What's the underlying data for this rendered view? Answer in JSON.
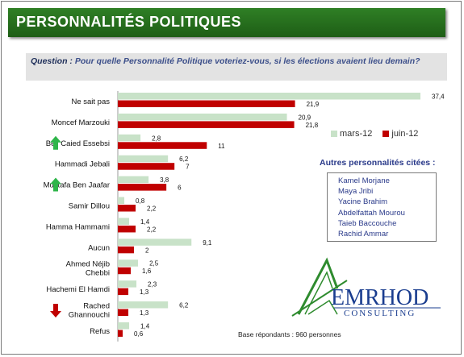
{
  "title": "PERSONNALITÉS  POLITIQUES",
  "question": {
    "label": "Question :",
    "text": "Pour quelle Personnalité Politique voteriez-vous, si les élections avaient lieu demain?"
  },
  "chart_data": {
    "type": "bar",
    "orientation": "horizontal",
    "categories": [
      "Ne sait pas",
      "Moncef Marzouki",
      "Beji Caied Essebsi",
      "Hammadi Jebali",
      "Mustafa Ben Jaafar",
      "Samir Dillou",
      "Hamma Hammami",
      "Aucun",
      "Ahmed Néjib Chebbi",
      "Hachemi El Hamdi",
      "Rached Ghannouchi",
      "Refus"
    ],
    "category_lines": [
      [
        "Ne sait pas"
      ],
      [
        "Moncef Marzouki"
      ],
      [
        "Beji Caied Essebsi"
      ],
      [
        "Hammadi Jebali"
      ],
      [
        "Mustafa Ben Jaafar"
      ],
      [
        "Samir Dillou"
      ],
      [
        "Hamma Hammami"
      ],
      [
        "Aucun"
      ],
      [
        "Ahmed Néjib",
        "Chebbi"
      ],
      [
        "Hachemi El Hamdi"
      ],
      [
        "Rached",
        "Ghannouchi"
      ],
      [
        "Refus"
      ]
    ],
    "series": [
      {
        "name": "mars-12",
        "color": "#c8e2c8",
        "values": [
          37.4,
          20.9,
          2.8,
          6.2,
          3.8,
          0.8,
          1.4,
          9.1,
          2.5,
          2.3,
          6.2,
          1.4
        ],
        "labels": [
          "37,4",
          "20,9",
          "2,8",
          "6,2",
          "3,8",
          "0,8",
          "1,4",
          "9,1",
          "2,5",
          "2,3",
          "6,2",
          "1,4"
        ]
      },
      {
        "name": "juin-12",
        "color": "#c00000",
        "values": [
          21.9,
          21.8,
          11,
          7,
          6,
          2.2,
          2.2,
          2,
          1.6,
          1.3,
          1.3,
          0.6
        ],
        "labels": [
          "21,9",
          "21,8",
          "11",
          "7",
          "6",
          "2,2",
          "2,2",
          "2",
          "1,6",
          "1,3",
          "1,3",
          "0,6"
        ]
      }
    ],
    "trend_arrows": [
      {
        "category": "Beji Caied Essebsi",
        "direction": "up",
        "color": "#2fb54a"
      },
      {
        "category": "Mustafa Ben Jaafar",
        "direction": "up",
        "color": "#2fb54a"
      },
      {
        "category": "Rached Ghannouchi",
        "direction": "down",
        "color": "#c00000"
      }
    ],
    "xlim": [
      0,
      37.4
    ],
    "legend_position": "right"
  },
  "others": {
    "title": "Autres personnalités citées :",
    "names": [
      "Kamel Morjane",
      "Maya Jribi",
      "Yacine Brahim",
      "Abdelfattah Mourou",
      "Taieb Baccouche",
      "Rachid Ammar"
    ]
  },
  "base": "Base répondants : 960  personnes",
  "logo": {
    "main": "EMRHOD",
    "sub": "CONSULTING",
    "color": "#1a3d8f",
    "accent": "#2e8b2e"
  }
}
